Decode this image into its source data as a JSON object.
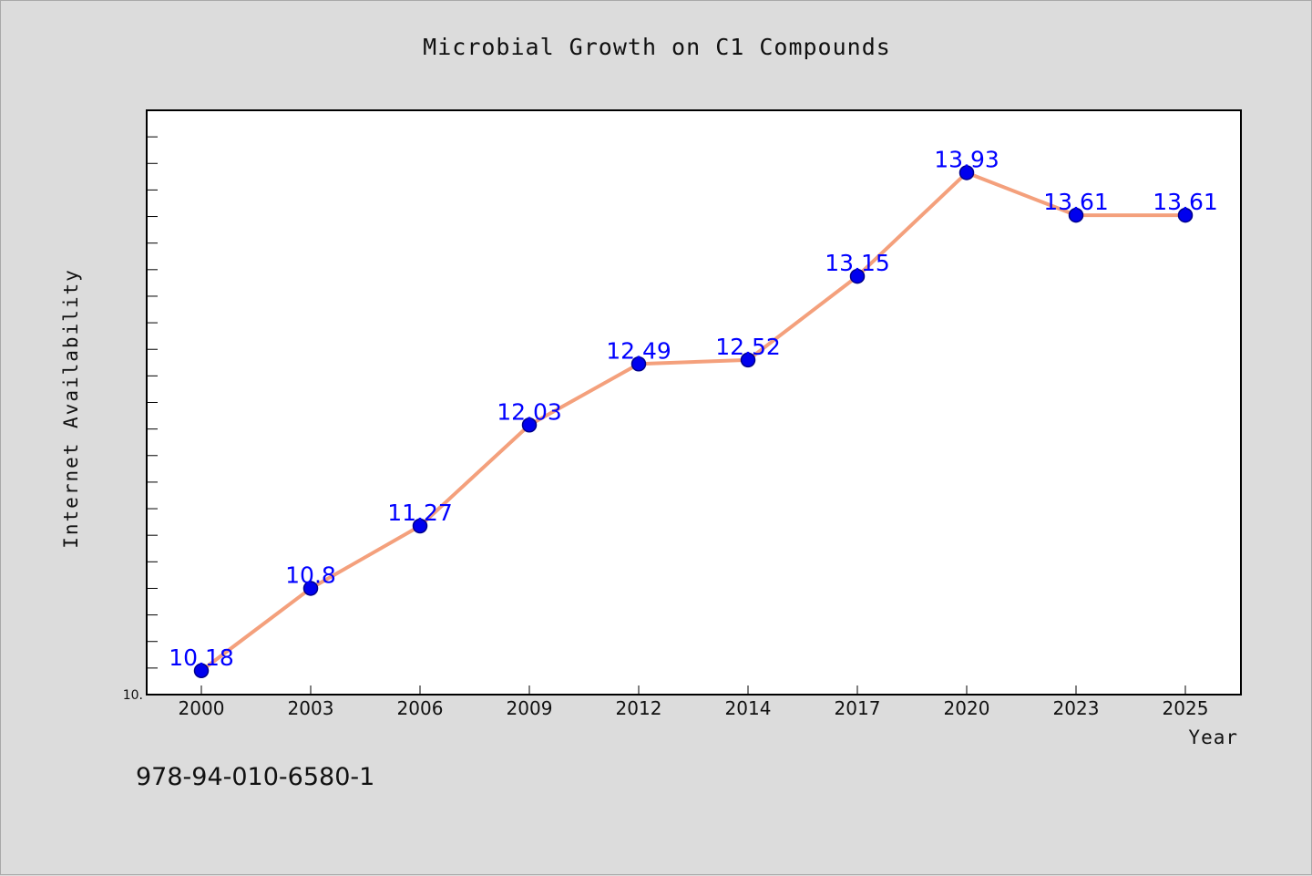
{
  "chart_data": {
    "type": "line",
    "title": "Microbial Growth on C1 Compounds",
    "xlabel": "Year",
    "ylabel": "Internet Availability",
    "categories": [
      "2000",
      "2003",
      "2006",
      "2009",
      "2012",
      "2014",
      "2017",
      "2020",
      "2023",
      "2025"
    ],
    "series": [
      {
        "values": [
          10.18,
          10.8,
          11.27,
          12.03,
          12.49,
          12.52,
          13.15,
          13.93,
          13.61,
          13.61
        ],
        "data_labels": [
          "10.18",
          "10.8",
          "11.27",
          "12.03",
          "12.49",
          "12.52",
          "13.15",
          "13.93",
          "13.61",
          "13.61"
        ],
        "line_color": "#f4a07c",
        "marker_color": "#0000ee"
      }
    ],
    "ylim": [
      10.0,
      14.4
    ],
    "y_tick_label": "10.",
    "grid": false,
    "legend": "none"
  },
  "footer": {
    "code": "978-94-010-6580-1"
  },
  "colors": {
    "background": "#dcdcdc",
    "plot_background": "#ffffff",
    "axis": "#000000",
    "label": "#0000ff"
  }
}
